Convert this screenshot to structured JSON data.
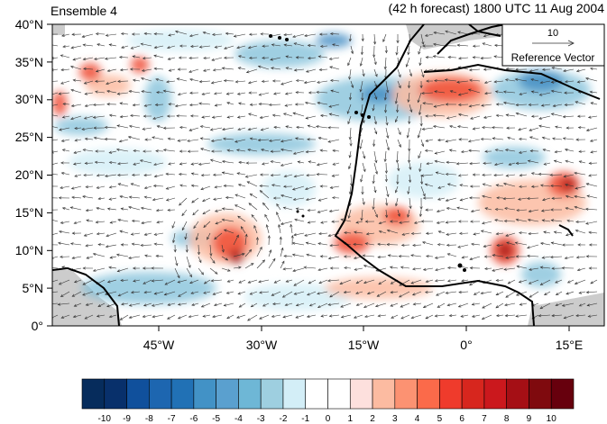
{
  "header": {
    "left": "Ensemble 4",
    "right": "(42 h forecast) 1800 UTC 11 Aug 2004"
  },
  "map": {
    "lon_range": [
      -57,
      20
    ],
    "lat_range": [
      0,
      40
    ],
    "lat_ticks": [
      "0°",
      "5°N",
      "10°N",
      "15°N",
      "20°N",
      "25°N",
      "30°N",
      "35°N",
      "40°N"
    ],
    "lon_ticks": [
      "45°W",
      "30°W",
      "15°W",
      "0°",
      "15°E"
    ],
    "reference_vector": {
      "value": "10",
      "label": "Reference Vector"
    }
  },
  "colorbar": {
    "labels": [
      "-10",
      "-9",
      "-8",
      "-7",
      "-6",
      "-5",
      "-4",
      "-3",
      "-2",
      "-1",
      "0",
      "1",
      "2",
      "3",
      "4",
      "5",
      "6",
      "7",
      "8",
      "9",
      "10"
    ],
    "colors": [
      "#062c5c",
      "#08306b",
      "#10509c",
      "#1d66b0",
      "#2171b5",
      "#4292c6",
      "#5aa0cf",
      "#6eb7d6",
      "#9ecfe0",
      "#d3eef7",
      "#ffffff",
      "#ffffff",
      "#fde0dd",
      "#fcbba1",
      "#fc9272",
      "#fb6a4a",
      "#ef3b2c",
      "#d7261e",
      "#cb181d",
      "#a50f15",
      "#7f0a0e",
      "#67000d"
    ]
  }
}
